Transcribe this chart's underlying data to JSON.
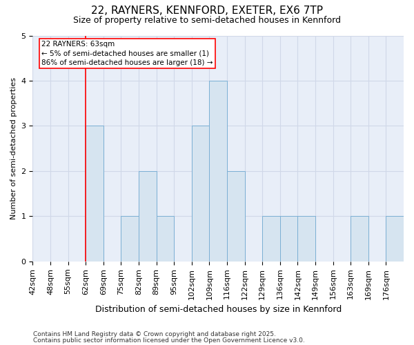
{
  "title1": "22, RAYNERS, KENNFORD, EXETER, EX6 7TP",
  "title2": "Size of property relative to semi-detached houses in Kennford",
  "xlabel": "Distribution of semi-detached houses by size in Kennford",
  "ylabel": "Number of semi-detached properties",
  "footnote1": "Contains HM Land Registry data © Crown copyright and database right 2025.",
  "footnote2": "Contains public sector information licensed under the Open Government Licence v3.0.",
  "bin_labels": [
    "42sqm",
    "48sqm",
    "55sqm",
    "62sqm",
    "69sqm",
    "75sqm",
    "82sqm",
    "89sqm",
    "95sqm",
    "102sqm",
    "109sqm",
    "116sqm",
    "122sqm",
    "129sqm",
    "136sqm",
    "142sqm",
    "149sqm",
    "156sqm",
    "163sqm",
    "169sqm",
    "176sqm"
  ],
  "bin_edges": [
    0,
    1,
    2,
    3,
    4,
    5,
    6,
    7,
    8,
    9,
    10,
    11,
    12,
    13,
    14,
    15,
    16,
    17,
    18,
    19,
    20,
    21
  ],
  "counts": [
    0,
    0,
    0,
    3,
    0,
    1,
    2,
    1,
    0,
    3,
    4,
    2,
    0,
    1,
    1,
    1,
    0,
    0,
    1,
    0,
    1
  ],
  "bar_facecolor": "#d6e4f0",
  "bar_edgecolor": "#7bafd4",
  "redline_bin": 3,
  "annotation_text": "22 RAYNERS: 63sqm\n← 5% of semi-detached houses are smaller (1)\n86% of semi-detached houses are larger (18) →",
  "ylim": [
    0,
    5
  ],
  "yticks": [
    0,
    1,
    2,
    3,
    4,
    5
  ],
  "grid_color": "#d0d8e8",
  "background_color": "#e8eef8",
  "title_fontsize": 11,
  "subtitle_fontsize": 9,
  "ylabel_fontsize": 8,
  "xlabel_fontsize": 9,
  "tick_fontsize": 8,
  "annot_fontsize": 7.5,
  "footnote_fontsize": 6.5
}
